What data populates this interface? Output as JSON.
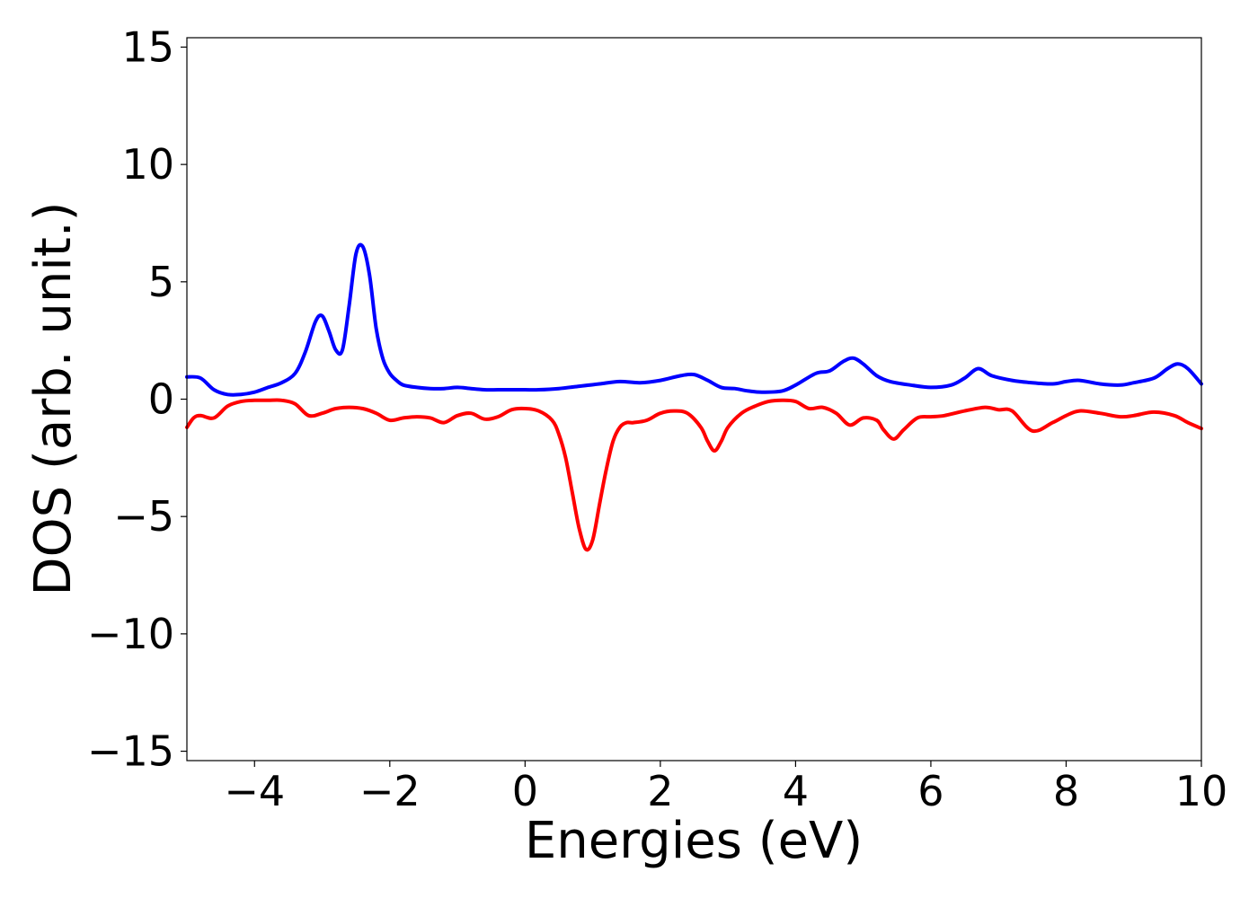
{
  "chart_data": {
    "type": "line",
    "title": "",
    "xlabel": "Energies (eV)",
    "ylabel": "DOS (arb. unit.)",
    "xlim": [
      -5,
      10
    ],
    "ylim": [
      -15.4,
      15.4
    ],
    "xticks": [
      -4,
      -2,
      0,
      2,
      4,
      6,
      8,
      10
    ],
    "xtick_labels": [
      "−4",
      "−2",
      "0",
      "2",
      "4",
      "6",
      "8",
      "10"
    ],
    "yticks": [
      -15,
      -10,
      -5,
      0,
      5,
      10,
      15
    ],
    "ytick_labels": [
      "−15",
      "−10",
      "−5",
      "0",
      "5",
      "10",
      "15"
    ],
    "grid": false,
    "legend": "none",
    "series": [
      {
        "color": "#0000ff",
        "x": [
          -5.0,
          -4.8,
          -4.6,
          -4.4,
          -4.2,
          -4.0,
          -3.8,
          -3.6,
          -3.4,
          -3.25,
          -3.1,
          -3.0,
          -2.9,
          -2.8,
          -2.7,
          -2.6,
          -2.5,
          -2.4,
          -2.3,
          -2.2,
          -2.1,
          -2.0,
          -1.9,
          -1.8,
          -1.6,
          -1.4,
          -1.2,
          -1.0,
          -0.8,
          -0.6,
          -0.4,
          -0.2,
          0.0,
          0.2,
          0.5,
          0.8,
          1.1,
          1.4,
          1.7,
          2.0,
          2.3,
          2.5,
          2.7,
          2.9,
          3.1,
          3.3,
          3.5,
          3.8,
          4.0,
          4.3,
          4.5,
          4.7,
          4.85,
          5.0,
          5.2,
          5.4,
          5.7,
          6.0,
          6.3,
          6.5,
          6.7,
          6.9,
          7.2,
          7.5,
          7.8,
          8.0,
          8.2,
          8.5,
          8.8,
          9.0,
          9.3,
          9.5,
          9.65,
          9.8,
          10.0
        ],
        "values": [
          0.95,
          0.9,
          0.4,
          0.2,
          0.2,
          0.3,
          0.5,
          0.7,
          1.1,
          2.0,
          3.3,
          3.55,
          2.9,
          2.1,
          2.1,
          4.0,
          6.2,
          6.5,
          5.3,
          3.0,
          1.7,
          1.1,
          0.8,
          0.6,
          0.5,
          0.45,
          0.45,
          0.5,
          0.45,
          0.4,
          0.4,
          0.4,
          0.4,
          0.4,
          0.45,
          0.55,
          0.65,
          0.75,
          0.7,
          0.8,
          1.0,
          1.05,
          0.8,
          0.5,
          0.45,
          0.35,
          0.3,
          0.35,
          0.6,
          1.1,
          1.2,
          1.6,
          1.75,
          1.5,
          1.0,
          0.75,
          0.6,
          0.5,
          0.6,
          0.9,
          1.3,
          1.0,
          0.8,
          0.7,
          0.65,
          0.75,
          0.8,
          0.65,
          0.6,
          0.7,
          0.9,
          1.3,
          1.5,
          1.3,
          0.65
        ]
      },
      {
        "color": "#ff0000",
        "x": [
          -5.0,
          -4.9,
          -4.8,
          -4.6,
          -4.4,
          -4.2,
          -4.0,
          -3.8,
          -3.6,
          -3.4,
          -3.2,
          -3.0,
          -2.8,
          -2.6,
          -2.4,
          -2.2,
          -2.0,
          -1.8,
          -1.6,
          -1.4,
          -1.2,
          -1.0,
          -0.8,
          -0.6,
          -0.4,
          -0.2,
          0.0,
          0.2,
          0.4,
          0.5,
          0.6,
          0.7,
          0.8,
          0.9,
          1.0,
          1.1,
          1.2,
          1.3,
          1.4,
          1.5,
          1.6,
          1.8,
          2.0,
          2.2,
          2.4,
          2.6,
          2.7,
          2.8,
          2.9,
          3.0,
          3.2,
          3.4,
          3.6,
          3.8,
          4.0,
          4.2,
          4.4,
          4.6,
          4.8,
          5.0,
          5.2,
          5.3,
          5.45,
          5.6,
          5.8,
          6.0,
          6.2,
          6.5,
          6.8,
          7.0,
          7.2,
          7.5,
          7.8,
          8.0,
          8.2,
          8.5,
          8.8,
          9.0,
          9.3,
          9.6,
          9.8,
          10.0
        ],
        "values": [
          -1.2,
          -0.8,
          -0.7,
          -0.8,
          -0.3,
          -0.1,
          -0.05,
          -0.05,
          -0.05,
          -0.2,
          -0.7,
          -0.6,
          -0.4,
          -0.35,
          -0.4,
          -0.6,
          -0.9,
          -0.8,
          -0.75,
          -0.8,
          -1.0,
          -0.7,
          -0.6,
          -0.85,
          -0.75,
          -0.45,
          -0.4,
          -0.5,
          -0.9,
          -1.5,
          -2.5,
          -4.0,
          -5.5,
          -6.4,
          -6.0,
          -4.5,
          -3.0,
          -1.8,
          -1.2,
          -1.0,
          -1.0,
          -0.9,
          -0.6,
          -0.5,
          -0.6,
          -1.2,
          -1.8,
          -2.2,
          -1.8,
          -1.2,
          -0.6,
          -0.3,
          -0.1,
          -0.05,
          -0.1,
          -0.4,
          -0.35,
          -0.6,
          -1.1,
          -0.8,
          -0.9,
          -1.3,
          -1.7,
          -1.3,
          -0.8,
          -0.75,
          -0.7,
          -0.5,
          -0.35,
          -0.45,
          -0.5,
          -1.35,
          -1.0,
          -0.7,
          -0.5,
          -0.6,
          -0.75,
          -0.7,
          -0.55,
          -0.7,
          -1.0,
          -1.25
        ]
      }
    ]
  }
}
